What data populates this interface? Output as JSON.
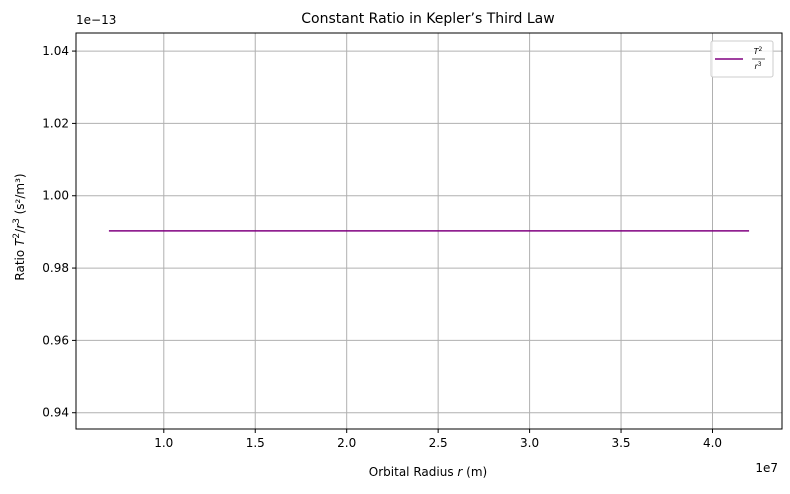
{
  "chart_data": {
    "type": "line",
    "title": "Constant Ratio in Kepler’s Third Law",
    "xlabel": {
      "prefix": "Orbital Radius ",
      "var": "r",
      "suffix": " (m)"
    },
    "ylabel": {
      "prefix": "Ratio ",
      "num_var": "T",
      "num_exp": "2",
      "slash": "/",
      "den_var": "r",
      "den_exp": "3",
      "suffix": " (s²/m³)"
    },
    "x_offset_label": "1e7",
    "y_offset_label": "1e−13",
    "xlim": [
      5200000,
      43800000
    ],
    "ylim": [
      9.355e-14,
      1.045e-13
    ],
    "x_ticks": [
      {
        "value": 10000000,
        "label": "1.0"
      },
      {
        "value": 15000000,
        "label": "1.5"
      },
      {
        "value": 20000000,
        "label": "2.0"
      },
      {
        "value": 25000000,
        "label": "2.5"
      },
      {
        "value": 30000000,
        "label": "3.0"
      },
      {
        "value": 35000000,
        "label": "3.5"
      },
      {
        "value": 40000000,
        "label": "4.0"
      }
    ],
    "y_ticks": [
      {
        "value": 9.4e-14,
        "label": "0.94"
      },
      {
        "value": 9.6e-14,
        "label": "0.96"
      },
      {
        "value": 9.8e-14,
        "label": "0.98"
      },
      {
        "value": 1e-13,
        "label": "1.00"
      },
      {
        "value": 1.02e-13,
        "label": "1.02"
      },
      {
        "value": 1.04e-13,
        "label": "1.04"
      }
    ],
    "grid": true,
    "legend_position": "top-right",
    "series": [
      {
        "legend": {
          "num_var": "T",
          "num_exp": "2",
          "den_var": "r",
          "den_exp": "3"
        },
        "color": "#800080",
        "x": [
          7000000,
          42000000
        ],
        "y": [
          9.903e-14,
          9.903e-14
        ]
      }
    ]
  }
}
